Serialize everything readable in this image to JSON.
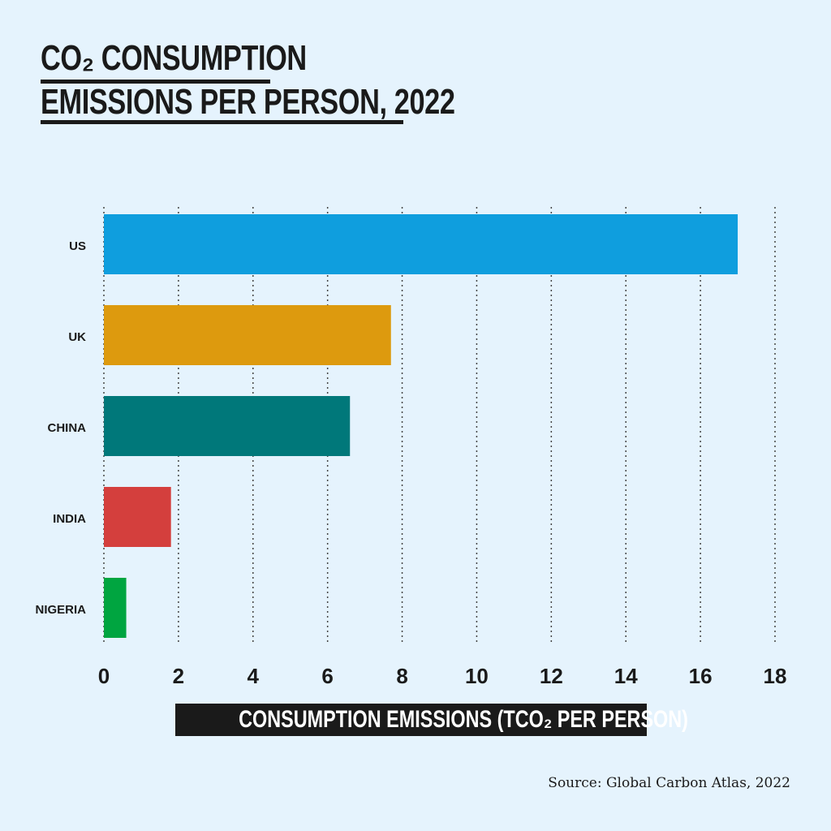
{
  "chart_data": {
    "type": "bar",
    "orientation": "horizontal",
    "title_lines": [
      "CO₂ CONSUMPTION",
      "EMISSIONS PER PERSON, 2022"
    ],
    "categories": [
      "US",
      "UK",
      "CHINA",
      "INDIA",
      "NIGERIA"
    ],
    "values": [
      17.0,
      7.7,
      6.6,
      1.8,
      0.6
    ],
    "colors": [
      "#0f9ede",
      "#dd9a0e",
      "#00787a",
      "#d43f3d",
      "#00a540"
    ],
    "xlabel": "CONSUMPTION EMISSIONS (TCO₂ PER PERSON)",
    "xlim": [
      0,
      18
    ],
    "xticks": [
      0,
      2,
      4,
      6,
      8,
      10,
      12,
      14,
      16,
      18
    ],
    "grid": "vertical dotted",
    "legend": "none"
  },
  "source": "Source: Global Carbon Atlas, 2022",
  "background": "#e5f3fd"
}
